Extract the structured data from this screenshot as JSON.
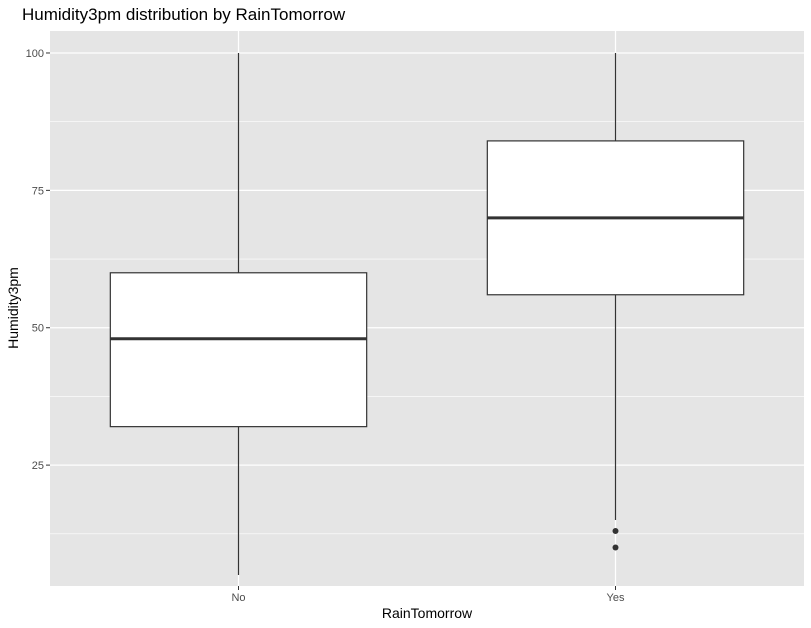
{
  "chart_data": {
    "type": "boxplot",
    "title": "Humidity3pm distribution by RainTomorrow",
    "xlabel": "RainTomorrow",
    "ylabel": "Humidity3pm",
    "categories": [
      "No",
      "Yes"
    ],
    "ylim": [
      3,
      104
    ],
    "yticks": [
      25,
      50,
      75,
      100
    ],
    "y_minor_ticks": [
      12.5,
      37.5,
      62.5,
      87.5
    ],
    "grid": true,
    "legend": "none",
    "boxes": [
      {
        "category": "No",
        "whisker_low": 5,
        "q1": 32,
        "median": 48,
        "q3": 60,
        "whisker_high": 100,
        "outliers": []
      },
      {
        "category": "Yes",
        "whisker_low": 15,
        "q1": 56,
        "median": 70,
        "q3": 84,
        "whisker_high": 100,
        "outliers": [
          13,
          10
        ]
      }
    ],
    "colors": {
      "panel_background": "#e5e5e5",
      "grid": "#ffffff",
      "box_fill": "#ffffff",
      "box_line": "#333333",
      "tick_text": "#4d4d4d"
    }
  }
}
